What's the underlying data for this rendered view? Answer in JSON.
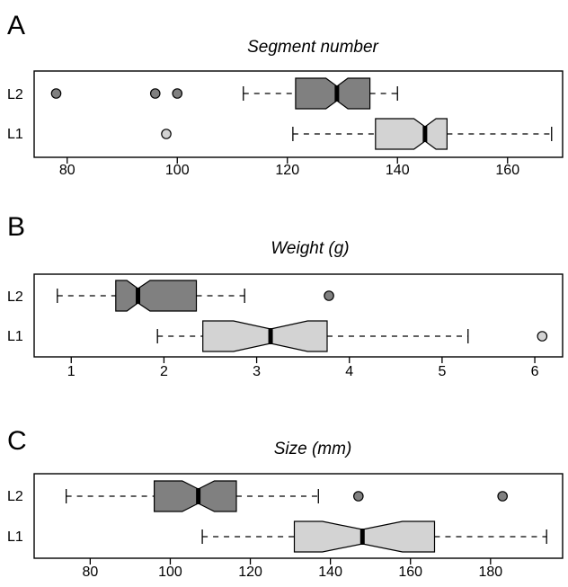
{
  "colors": {
    "L2": "#808080",
    "L1": "#d3d3d3",
    "outline": "#000000"
  },
  "chart_data": [
    {
      "type": "boxplot",
      "letter": "A",
      "title": "Segment number",
      "xlim": [
        74,
        170
      ],
      "xticks": [
        80,
        100,
        120,
        140,
        160
      ],
      "notched": true,
      "series": [
        {
          "name": "L2",
          "whisker_low": 112,
          "q1": 121.5,
          "median": 129,
          "q3": 135,
          "whisker_high": 140,
          "notch_low": 127,
          "notch_high": 131,
          "outliers": [
            78,
            96,
            100
          ]
        },
        {
          "name": "L1",
          "whisker_low": 121,
          "q1": 136,
          "median": 145,
          "q3": 149,
          "whisker_high": 168,
          "notch_low": 143,
          "notch_high": 147,
          "outliers": [
            98
          ]
        }
      ]
    },
    {
      "type": "boxplot",
      "letter": "B",
      "title": "Weight (g)",
      "xlim": [
        0.6,
        6.3
      ],
      "xticks": [
        1,
        2,
        3,
        4,
        5,
        6
      ],
      "notched": true,
      "series": [
        {
          "name": "L2",
          "whisker_low": 0.85,
          "q1": 1.48,
          "median": 1.72,
          "q3": 2.35,
          "whisker_high": 2.87,
          "notch_low": 1.6,
          "notch_high": 1.85,
          "outliers": [
            3.78
          ]
        },
        {
          "name": "L1",
          "whisker_low": 1.93,
          "q1": 2.42,
          "median": 3.15,
          "q3": 3.76,
          "whisker_high": 5.28,
          "notch_low": 2.75,
          "notch_high": 3.55,
          "outliers": [
            6.08
          ]
        }
      ]
    },
    {
      "type": "boxplot",
      "letter": "C",
      "title": "Size (mm)",
      "xlim": [
        66,
        198
      ],
      "xticks": [
        80,
        100,
        120,
        140,
        160,
        180
      ],
      "notched": true,
      "series": [
        {
          "name": "L2",
          "whisker_low": 74,
          "q1": 96,
          "median": 107,
          "q3": 116.5,
          "whisker_high": 137,
          "notch_low": 103,
          "notch_high": 111,
          "outliers": [
            147,
            183
          ]
        },
        {
          "name": "L1",
          "whisker_low": 108,
          "q1": 131,
          "median": 148,
          "q3": 166,
          "whisker_high": 194,
          "notch_low": 138,
          "notch_high": 158,
          "outliers": []
        }
      ]
    }
  ]
}
